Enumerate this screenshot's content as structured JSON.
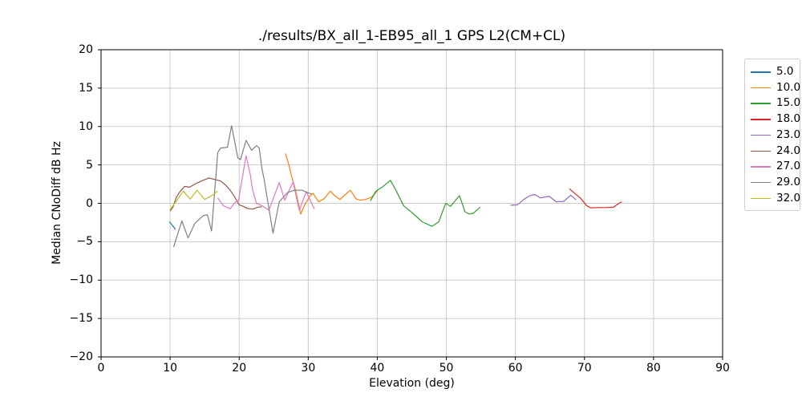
{
  "chart_data": {
    "type": "line",
    "title": "./results/BX_all_1-EB95_all_1 GPS L2(CM+CL)",
    "xlabel": "Elevation (deg)",
    "ylabel": "Median CNoDiff dB Hz",
    "xlim": [
      0,
      90
    ],
    "ylim": [
      -20,
      20
    ],
    "x_ticks": [
      0,
      10,
      20,
      30,
      40,
      50,
      60,
      70,
      80,
      90
    ],
    "y_ticks": [
      -20,
      -15,
      -10,
      -5,
      0,
      5,
      10,
      15,
      20
    ],
    "grid": true,
    "grid_color": "#cccccc",
    "legend_position": "outside-right",
    "series": [
      {
        "name": "5.0",
        "color": "#1f77b4",
        "points": [
          [
            9.9,
            -2.4
          ],
          [
            10.8,
            -3.4
          ]
        ]
      },
      {
        "name": "10.0",
        "color": "#ff7f0e",
        "points": [
          [
            26.7,
            6.5
          ],
          [
            27.2,
            5.0
          ],
          [
            27.6,
            3.5
          ],
          [
            28.1,
            1.9
          ],
          [
            28.5,
            0.3
          ],
          [
            28.9,
            -1.4
          ],
          [
            29.5,
            -0.2
          ],
          [
            30.2,
            0.9
          ],
          [
            30.7,
            1.3
          ],
          [
            31.5,
            0.2
          ],
          [
            32.3,
            0.6
          ],
          [
            33.2,
            1.6
          ],
          [
            33.8,
            1.0
          ],
          [
            34.6,
            0.5
          ],
          [
            35.3,
            1.1
          ],
          [
            36.1,
            1.7
          ],
          [
            36.9,
            0.6
          ],
          [
            37.5,
            0.4
          ],
          [
            38.3,
            0.5
          ],
          [
            39.2,
            0.8
          ],
          [
            40.0,
            1.6
          ]
        ]
      },
      {
        "name": "15.0",
        "color": "#2ca02c",
        "points": [
          [
            39.0,
            0.3
          ],
          [
            39.8,
            1.6
          ],
          [
            40.7,
            2.1
          ],
          [
            41.9,
            3.0
          ],
          [
            42.7,
            1.7
          ],
          [
            43.8,
            -0.3
          ],
          [
            45.0,
            -1.2
          ],
          [
            46.5,
            -2.4
          ],
          [
            47.9,
            -3.0
          ],
          [
            48.9,
            -2.4
          ],
          [
            49.9,
            0.0
          ],
          [
            50.6,
            -0.4
          ],
          [
            51.9,
            1.0
          ],
          [
            52.7,
            -1.1
          ],
          [
            53.3,
            -1.4
          ],
          [
            53.9,
            -1.3
          ],
          [
            54.9,
            -0.5
          ]
        ]
      },
      {
        "name": "18.0",
        "color": "#d62728",
        "points": [
          [
            67.8,
            1.9
          ],
          [
            68.6,
            1.3
          ],
          [
            69.4,
            0.7
          ],
          [
            70.3,
            -0.3
          ],
          [
            70.9,
            -0.6
          ],
          [
            72.0,
            -0.55
          ],
          [
            73.2,
            -0.55
          ],
          [
            74.2,
            -0.5
          ],
          [
            75.0,
            0.0
          ],
          [
            75.4,
            0.2
          ]
        ]
      },
      {
        "name": "23.0",
        "color": "#9467bd",
        "points": [
          [
            59.3,
            -0.25
          ],
          [
            60.3,
            -0.2
          ],
          [
            61.2,
            0.5
          ],
          [
            62.1,
            1.0
          ],
          [
            62.8,
            1.15
          ],
          [
            63.6,
            0.7
          ],
          [
            64.4,
            0.85
          ],
          [
            64.9,
            0.9
          ],
          [
            65.9,
            0.2
          ],
          [
            67.0,
            0.25
          ],
          [
            68.0,
            1.05
          ],
          [
            68.8,
            0.45
          ]
        ]
      },
      {
        "name": "24.0",
        "color": "#8c564b",
        "points": [
          [
            10.0,
            -1.0
          ],
          [
            10.4,
            -0.5
          ],
          [
            10.9,
            0.8
          ],
          [
            11.5,
            1.6
          ],
          [
            12.1,
            2.2
          ],
          [
            12.8,
            2.1
          ],
          [
            13.8,
            2.6
          ],
          [
            14.8,
            3.0
          ],
          [
            15.6,
            3.3
          ],
          [
            16.5,
            3.1
          ],
          [
            17.3,
            2.9
          ],
          [
            18.0,
            2.4
          ],
          [
            18.7,
            1.7
          ],
          [
            19.3,
            0.9
          ],
          [
            20.0,
            -0.2
          ],
          [
            20.6,
            -0.4
          ],
          [
            21.3,
            -0.7
          ],
          [
            22.0,
            -0.75
          ],
          [
            22.7,
            -0.5
          ],
          [
            23.3,
            -0.45
          ]
        ]
      },
      {
        "name": "27.0",
        "color": "#e377c2",
        "points": [
          [
            16.9,
            0.7
          ],
          [
            17.7,
            -0.3
          ],
          [
            18.7,
            -0.7
          ],
          [
            19.4,
            0.1
          ],
          [
            19.9,
            0.4
          ],
          [
            21.0,
            6.2
          ],
          [
            21.6,
            3.8
          ],
          [
            21.9,
            1.9
          ],
          [
            22.5,
            0.0
          ],
          [
            23.3,
            -0.3
          ],
          [
            24.3,
            -0.9
          ],
          [
            25.8,
            2.7
          ],
          [
            26.6,
            0.4
          ],
          [
            27.8,
            2.8
          ],
          [
            28.7,
            -0.9
          ],
          [
            29.7,
            1.5
          ],
          [
            30.9,
            -0.75
          ]
        ]
      },
      {
        "name": "29.0",
        "color": "#7f7f7f",
        "points": [
          [
            10.5,
            -5.7
          ],
          [
            11.7,
            -2.3
          ],
          [
            12.6,
            -4.5
          ],
          [
            13.6,
            -2.6
          ],
          [
            14.8,
            -1.6
          ],
          [
            15.4,
            -1.5
          ],
          [
            16.0,
            -3.6
          ],
          [
            16.9,
            6.6
          ],
          [
            17.3,
            7.2
          ],
          [
            18.3,
            7.3
          ],
          [
            18.9,
            10.1
          ],
          [
            19.8,
            5.9
          ],
          [
            20.2,
            5.7
          ],
          [
            21.0,
            8.2
          ],
          [
            21.8,
            6.9
          ],
          [
            22.5,
            7.5
          ],
          [
            22.9,
            7.2
          ],
          [
            23.3,
            4.5
          ],
          [
            23.6,
            3.2
          ],
          [
            24.9,
            -3.9
          ],
          [
            25.8,
            0.2
          ],
          [
            27.0,
            1.4
          ],
          [
            28.0,
            1.7
          ],
          [
            29.1,
            1.7
          ],
          [
            29.9,
            1.4
          ],
          [
            30.5,
            1.2
          ]
        ]
      },
      {
        "name": "32.0",
        "color": "#bcbd22",
        "points": [
          [
            10.0,
            -0.8
          ],
          [
            10.4,
            -0.3
          ],
          [
            11.0,
            0.4
          ],
          [
            11.9,
            1.6
          ],
          [
            12.9,
            0.55
          ],
          [
            13.9,
            1.7
          ],
          [
            15.0,
            0.5
          ],
          [
            16.2,
            1.1
          ],
          [
            16.9,
            1.6
          ]
        ]
      }
    ]
  }
}
